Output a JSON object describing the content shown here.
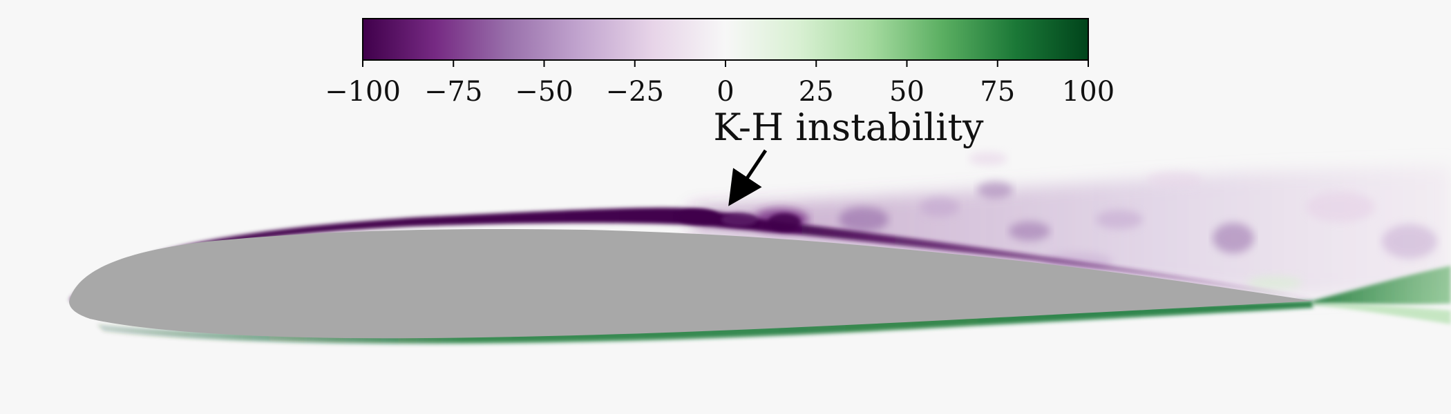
{
  "colorbar": {
    "ticks": [
      "−100",
      "−75",
      "−50",
      "−25",
      "0",
      "25",
      "50",
      "75",
      "100"
    ],
    "min": -100,
    "max": 100,
    "colormap": "PRGn",
    "stops": [
      "#40004b",
      "#762a83",
      "#9970ab",
      "#c2a5cf",
      "#e7d4e8",
      "#f7f7f7",
      "#d9f0d3",
      "#a6dba0",
      "#5aae61",
      "#1b7837",
      "#00441b"
    ]
  },
  "annotation": {
    "text": "K-H instability"
  },
  "colors": {
    "airfoil": "#a8a8a8",
    "background": "#f7f7f7",
    "suction_side_layer": "#40004b",
    "pressure_side_layer": "#1b7837"
  }
}
